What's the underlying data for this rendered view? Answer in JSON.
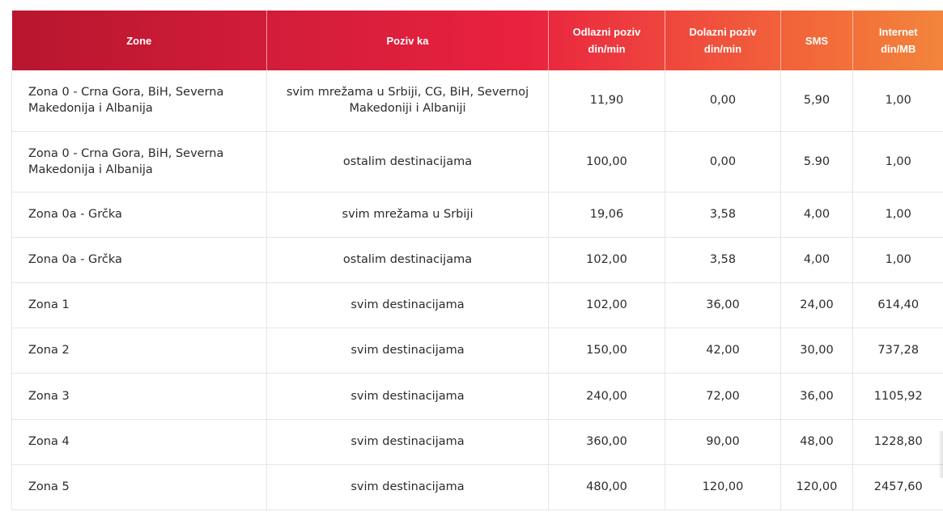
{
  "table": {
    "headers": [
      {
        "lines": [
          "Zone"
        ]
      },
      {
        "lines": [
          "Poziv ka"
        ]
      },
      {
        "lines": [
          "Odlazni poziv",
          "din/min"
        ]
      },
      {
        "lines": [
          "Dolazni poziv",
          "din/min"
        ]
      },
      {
        "lines": [
          "SMS"
        ]
      },
      {
        "lines": [
          "Internet",
          "din/MB"
        ]
      }
    ],
    "rows": [
      {
        "zone": "Zona 0 - Crna Gora, BiH, Severna Makedonija i Albanija",
        "poziv_ka": "svim mrežama u Srbiji, CG, BiH, Severnoj Makedoniji i Albaniji",
        "odlazni": "11,90",
        "dolazni": "0,00",
        "sms": "5,90",
        "internet": "1,00"
      },
      {
        "zone": "Zona 0 - Crna Gora, BiH, Severna Makedonija i Albanija",
        "poziv_ka": "ostalim destinacijama",
        "odlazni": "100,00",
        "dolazni": "0,00",
        "sms": "5.90",
        "internet": "1,00"
      },
      {
        "zone": "Zona 0a - Grčka",
        "poziv_ka": "svim mrežama u Srbiji",
        "odlazni": "19,06",
        "dolazni": "3,58",
        "sms": "4,00",
        "internet": "1,00"
      },
      {
        "zone": "Zona 0a - Grčka",
        "poziv_ka": "ostalim destinacijama",
        "odlazni": "102,00",
        "dolazni": "3,58",
        "sms": "4,00",
        "internet": "1,00"
      },
      {
        "zone": "Zona 1",
        "poziv_ka": "svim destinacijama",
        "odlazni": "102,00",
        "dolazni": "36,00",
        "sms": "24,00",
        "internet": "614,40"
      },
      {
        "zone": "Zona 2",
        "poziv_ka": "svim destinacijama",
        "odlazni": "150,00",
        "dolazni": "42,00",
        "sms": "30,00",
        "internet": "737,28"
      },
      {
        "zone": "Zona 3",
        "poziv_ka": "svim destinacijama",
        "odlazni": "240,00",
        "dolazni": "72,00",
        "sms": "36,00",
        "internet": "1105,92"
      },
      {
        "zone": "Zona 4",
        "poziv_ka": "svim destinacijama",
        "odlazni": "360,00",
        "dolazni": "90,00",
        "sms": "48,00",
        "internet": "1228,80"
      },
      {
        "zone": "Zona 5",
        "poziv_ka": "svim destinacijama",
        "odlazni": "480,00",
        "dolazni": "120,00",
        "sms": "120,00",
        "internet": "2457,60"
      }
    ]
  },
  "colors": {
    "header_gradient_start": "#b8162f",
    "header_gradient_mid": "#e9223f",
    "header_gradient_end": "#f2853b",
    "border": "#e6e6e6",
    "text": "#2b2b2b"
  }
}
